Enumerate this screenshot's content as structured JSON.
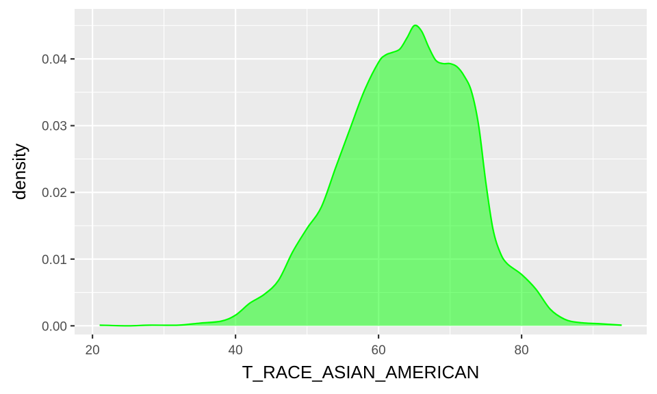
{
  "chart_data": {
    "type": "area",
    "title": "",
    "xlabel": "T_RACE_ASIAN_AMERICAN",
    "ylabel": "density",
    "xlim": [
      17.5,
      97.5
    ],
    "ylim": [
      -0.0013,
      0.0475
    ],
    "x_ticks": [
      20,
      40,
      60,
      80
    ],
    "x_tick_labels": [
      "20",
      "40",
      "60",
      "80"
    ],
    "y_ticks": [
      0,
      0.01,
      0.02,
      0.03,
      0.04
    ],
    "y_tick_labels": [
      "0.00",
      "0.01",
      "0.02",
      "0.03",
      "0.04"
    ],
    "grid": true,
    "legend": "none",
    "colors": {
      "fill": "#00FF00",
      "fill_opacity": 0.5,
      "line": "#00FF00",
      "panel": "#EBEBEB",
      "grid": "#FFFFFF"
    },
    "series": [
      {
        "x": [
          21,
          25,
          28,
          32,
          35,
          38,
          40,
          42,
          44,
          46,
          48,
          50,
          52,
          54,
          56,
          58,
          60,
          61,
          62,
          63,
          64,
          65,
          66,
          67,
          68,
          69,
          70,
          71,
          72,
          73,
          74,
          75,
          76,
          77,
          78,
          80,
          82,
          84,
          86,
          88,
          91,
          94
        ],
        "y": [
          0.0001,
          0.0,
          0.0001,
          0.0001,
          0.0004,
          0.0007,
          0.0016,
          0.0034,
          0.0047,
          0.0068,
          0.0111,
          0.0146,
          0.0178,
          0.0237,
          0.0295,
          0.0352,
          0.0395,
          0.0406,
          0.041,
          0.0415,
          0.0432,
          0.045,
          0.0442,
          0.0418,
          0.0398,
          0.0393,
          0.0393,
          0.0388,
          0.0374,
          0.0351,
          0.03,
          0.0215,
          0.0145,
          0.011,
          0.0093,
          0.0077,
          0.0055,
          0.0025,
          0.001,
          0.0005,
          0.0003,
          0.0001
        ]
      }
    ]
  }
}
